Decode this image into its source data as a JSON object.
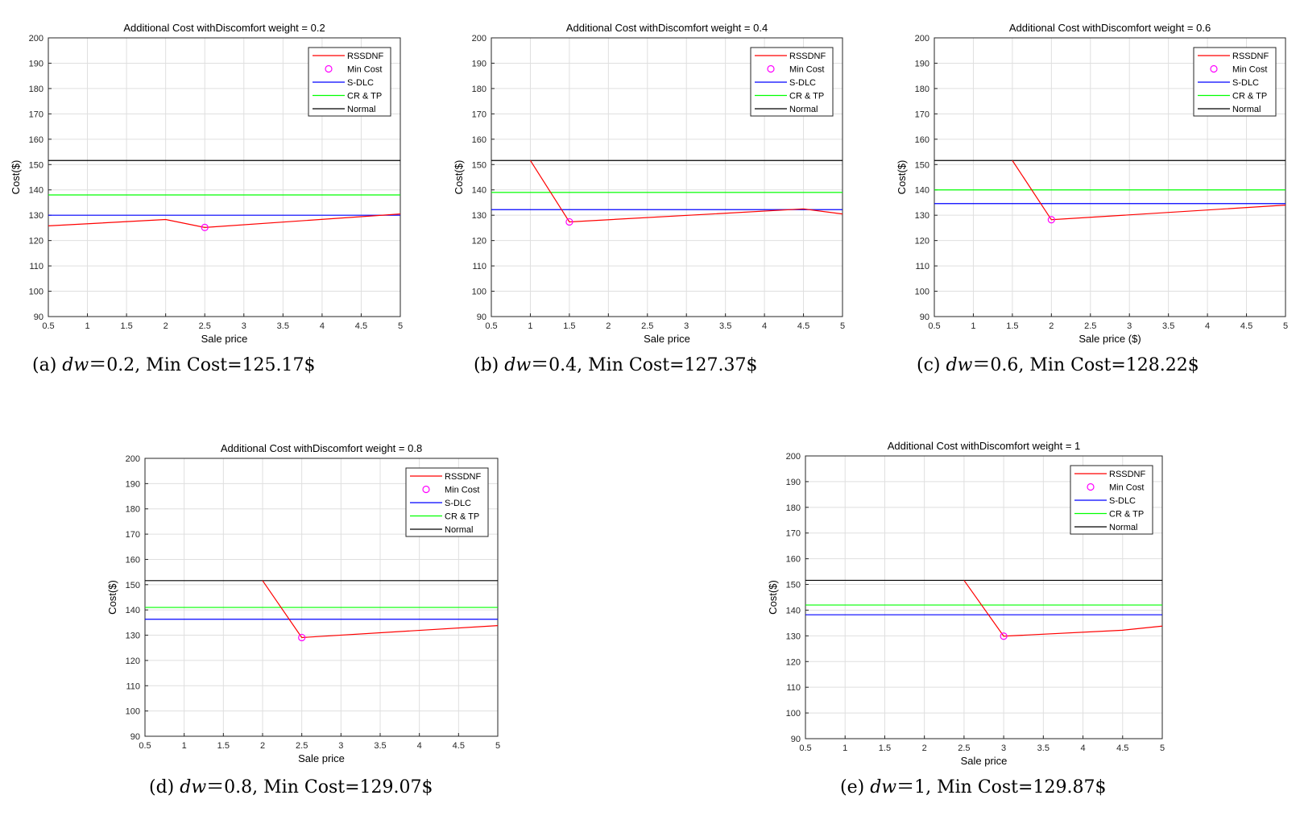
{
  "chart_data": [
    {
      "type": "line",
      "title": "Additional Cost withDiscomfort weight = 0.2",
      "xlabel": "Sale price",
      "ylabel": "Cost($)",
      "xlim": [
        0.5,
        5
      ],
      "ylim": [
        90,
        200
      ],
      "xticks": [
        "0.5",
        "1",
        "1.5",
        "2",
        "2.5",
        "3",
        "3.5",
        "4",
        "4.5",
        "5"
      ],
      "yticks": [
        "90",
        "100",
        "110",
        "120",
        "130",
        "140",
        "150",
        "160",
        "170",
        "180",
        "190",
        "200"
      ],
      "grid": true,
      "legend_position": "top-right",
      "series": [
        {
          "name": "RSSDNF",
          "color": "#ff0000",
          "x": [
            0.5,
            2,
            2.5,
            5
          ],
          "y": [
            125.8,
            128.3,
            125.17,
            130.5
          ]
        },
        {
          "name": "Min Cost",
          "color": "#ff00ff",
          "marker": "circle",
          "x": [
            2.5
          ],
          "y": [
            125.17
          ]
        },
        {
          "name": "S-DLC",
          "color": "#0000ff",
          "x": [
            0.5,
            5
          ],
          "y": [
            130,
            130
          ]
        },
        {
          "name": "CR & TP",
          "color": "#00ff00",
          "x": [
            0.5,
            5
          ],
          "y": [
            138,
            138
          ]
        },
        {
          "name": "Normal",
          "color": "#000000",
          "x": [
            0.5,
            5
          ],
          "y": [
            151.6,
            151.6
          ]
        }
      ],
      "caption": {
        "prefix": "(a) ",
        "var": "dw",
        "rest": "＝0.2, Min Cost=125.17$"
      }
    },
    {
      "type": "line",
      "title": "Additional Cost withDiscomfort weight = 0.4",
      "xlabel": "Sale price",
      "ylabel": "Cost($)",
      "xlim": [
        0.5,
        5
      ],
      "ylim": [
        90,
        200
      ],
      "xticks": [
        "0.5",
        "1",
        "1.5",
        "2",
        "2.5",
        "3",
        "3.5",
        "4",
        "4.5",
        "5"
      ],
      "yticks": [
        "90",
        "100",
        "110",
        "120",
        "130",
        "140",
        "150",
        "160",
        "170",
        "180",
        "190",
        "200"
      ],
      "grid": true,
      "legend_position": "top-right",
      "series": [
        {
          "name": "RSSDNF",
          "color": "#ff0000",
          "x": [
            1,
            1.5,
            4.5,
            5
          ],
          "y": [
            151.6,
            127.37,
            132.5,
            130.5
          ]
        },
        {
          "name": "Min Cost",
          "color": "#ff00ff",
          "marker": "circle",
          "x": [
            1.5
          ],
          "y": [
            127.37
          ]
        },
        {
          "name": "S-DLC",
          "color": "#0000ff",
          "x": [
            0.5,
            5
          ],
          "y": [
            132.2,
            132.2
          ]
        },
        {
          "name": "CR & TP",
          "color": "#00ff00",
          "x": [
            0.5,
            5
          ],
          "y": [
            139,
            139
          ]
        },
        {
          "name": "Normal",
          "color": "#000000",
          "x": [
            0.5,
            5
          ],
          "y": [
            151.6,
            151.6
          ]
        }
      ],
      "caption": {
        "prefix": "(b) ",
        "var": "dw",
        "rest": "＝0.4, Min Cost=127.37$"
      }
    },
    {
      "type": "line",
      "title": "Additional Cost withDiscomfort weight = 0.6",
      "xlabel": "Sale price ($)",
      "ylabel": "Cost($)",
      "xlim": [
        0.5,
        5
      ],
      "ylim": [
        90,
        200
      ],
      "xticks": [
        "0.5",
        "1",
        "1.5",
        "2",
        "2.5",
        "3",
        "3.5",
        "4",
        "4.5",
        "5"
      ],
      "yticks": [
        "90",
        "100",
        "110",
        "120",
        "130",
        "140",
        "150",
        "160",
        "170",
        "180",
        "190",
        "200"
      ],
      "grid": true,
      "legend_position": "top-right",
      "series": [
        {
          "name": "RSSDNF",
          "color": "#ff0000",
          "x": [
            1.5,
            2,
            5
          ],
          "y": [
            151.6,
            128.22,
            134
          ]
        },
        {
          "name": "Min Cost",
          "color": "#ff00ff",
          "marker": "circle",
          "x": [
            2
          ],
          "y": [
            128.22
          ]
        },
        {
          "name": "S-DLC",
          "color": "#0000ff",
          "x": [
            0.5,
            5
          ],
          "y": [
            134.6,
            134.6
          ]
        },
        {
          "name": "CR & TP",
          "color": "#00ff00",
          "x": [
            0.5,
            5
          ],
          "y": [
            140,
            140
          ]
        },
        {
          "name": "Normal",
          "color": "#000000",
          "x": [
            0.5,
            5
          ],
          "y": [
            151.6,
            151.6
          ]
        }
      ],
      "caption": {
        "prefix": "(c) ",
        "var": "dw",
        "rest": "＝0.6, Min Cost=128.22$"
      }
    },
    {
      "type": "line",
      "title": "Additional Cost withDiscomfort weight = 0.8",
      "xlabel": "Sale price",
      "ylabel": "Cost($)",
      "xlim": [
        0.5,
        5
      ],
      "ylim": [
        90,
        200
      ],
      "xticks": [
        "0.5",
        "1",
        "1.5",
        "2",
        "2.5",
        "3",
        "3.5",
        "4",
        "4.5",
        "5"
      ],
      "yticks": [
        "90",
        "100",
        "110",
        "120",
        "130",
        "140",
        "150",
        "160",
        "170",
        "180",
        "190",
        "200"
      ],
      "grid": true,
      "legend_position": "top-right",
      "series": [
        {
          "name": "RSSDNF",
          "color": "#ff0000",
          "x": [
            2,
            2.5,
            5
          ],
          "y": [
            151.6,
            129.07,
            133.8
          ]
        },
        {
          "name": "Min Cost",
          "color": "#ff00ff",
          "marker": "circle",
          "x": [
            2.5
          ],
          "y": [
            129.07
          ]
        },
        {
          "name": "S-DLC",
          "color": "#0000ff",
          "x": [
            0.5,
            5
          ],
          "y": [
            136.3,
            136.3
          ]
        },
        {
          "name": "CR & TP",
          "color": "#00ff00",
          "x": [
            0.5,
            5
          ],
          "y": [
            141,
            141
          ]
        },
        {
          "name": "Normal",
          "color": "#000000",
          "x": [
            0.5,
            5
          ],
          "y": [
            151.6,
            151.6
          ]
        }
      ],
      "caption": {
        "prefix": "(d) ",
        "var": "dw",
        "rest": "＝0.8, Min Cost=129.07$"
      }
    },
    {
      "type": "line",
      "title": "Additional Cost withDiscomfort weight = 1",
      "xlabel": "Sale price",
      "ylabel": "Cost($)",
      "xlim": [
        0.5,
        5
      ],
      "ylim": [
        90,
        200
      ],
      "xticks": [
        "0.5",
        "1",
        "1.5",
        "2",
        "2.5",
        "3",
        "3.5",
        "4",
        "4.5",
        "5"
      ],
      "yticks": [
        "90",
        "100",
        "110",
        "120",
        "130",
        "140",
        "150",
        "160",
        "170",
        "180",
        "190",
        "200"
      ],
      "grid": true,
      "legend_position": "top-right",
      "series": [
        {
          "name": "RSSDNF",
          "color": "#ff0000",
          "x": [
            2.5,
            3,
            4.5,
            5
          ],
          "y": [
            151.6,
            129.87,
            132.2,
            133.8
          ]
        },
        {
          "name": "Min Cost",
          "color": "#ff00ff",
          "marker": "circle",
          "x": [
            3
          ],
          "y": [
            129.87
          ]
        },
        {
          "name": "S-DLC",
          "color": "#0000ff",
          "x": [
            0.5,
            5
          ],
          "y": [
            138.2,
            138.2
          ]
        },
        {
          "name": "CR & TP",
          "color": "#00ff00",
          "x": [
            0.5,
            5
          ],
          "y": [
            142,
            142
          ]
        },
        {
          "name": "Normal",
          "color": "#000000",
          "x": [
            0.5,
            5
          ],
          "y": [
            151.6,
            151.6
          ]
        }
      ],
      "caption": {
        "prefix": "(e) ",
        "var": "dw",
        "rest": "＝1, Min Cost=129.87$"
      }
    }
  ]
}
